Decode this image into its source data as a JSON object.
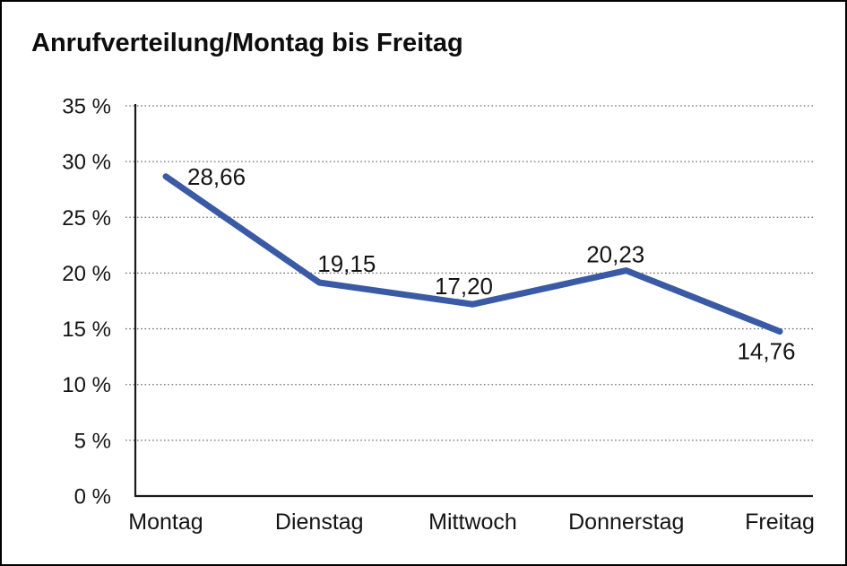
{
  "window": {
    "background_color": "#ffffff",
    "frame_border_color": "#000000"
  },
  "header": {
    "title": "Anrufverteilung/Montag bis Freitag"
  },
  "chart_data": {
    "type": "line",
    "title": "Anrufverteilung/Montag bis Freitag",
    "categories": [
      "Montag",
      "Dienstag",
      "Mittwoch",
      "Donnerstag",
      "Freitag"
    ],
    "values": [
      28.66,
      19.15,
      17.2,
      20.23,
      14.76
    ],
    "value_labels": [
      "28,66",
      "19,15",
      "17,20",
      "20,23",
      "14,76"
    ],
    "series_name": "Anrufverteilung",
    "xlabel": "",
    "ylabel": "",
    "ylim": [
      0,
      35
    ],
    "ytick_step": 5,
    "ytick_labels": [
      "0 %",
      "5 %",
      "10 %",
      "15 %",
      "20 %",
      "25 %",
      "30 %",
      "35 %"
    ],
    "grid": "horizontal-dotted",
    "legend": "none",
    "line_color": "#3a5aa5",
    "axis_color": "#1a1a1a",
    "gridline_color": "#6f6f6f",
    "label_color": "#141414"
  }
}
